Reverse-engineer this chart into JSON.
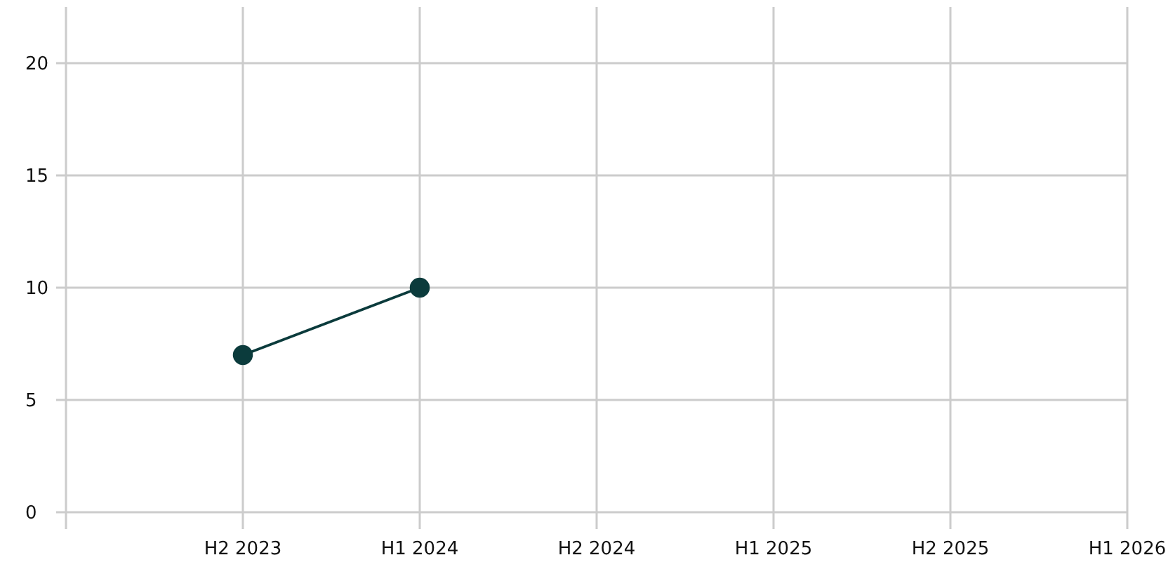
{
  "chart_data": {
    "type": "line",
    "categories": [
      null,
      "H2 2023",
      "H1 2024",
      "H2 2024",
      "H1 2025",
      "H2 2025",
      "H1 2026"
    ],
    "series": [
      {
        "color": "#0b3b3c",
        "values": [
          null,
          7,
          10,
          null,
          null,
          null,
          null
        ]
      }
    ],
    "ylim": [
      0,
      22.5
    ],
    "yticks": [
      0,
      5,
      10,
      15,
      20
    ],
    "grid": true,
    "marker": "circle",
    "line_style": "solid"
  }
}
